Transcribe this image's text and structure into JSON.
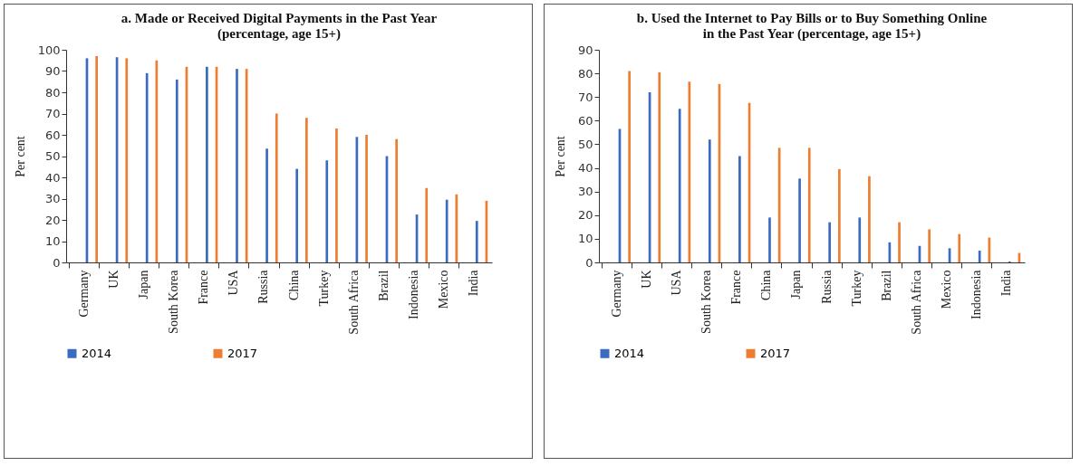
{
  "chart_data": [
    {
      "type": "bar",
      "title": "a. Made or Received Digital Payments in the Past Year\n(percentage, age 15+)",
      "ylabel": "Per cent",
      "categories": [
        "Germany",
        "UK",
        "Japan",
        "South Korea",
        "France",
        "USA",
        "Russia",
        "China",
        "Turkey",
        "South Africa",
        "Brazil",
        "Indonesia",
        "Mexico",
        "India"
      ],
      "series": [
        {
          "name": "2014",
          "color": "#3a6bc0",
          "values": [
            96,
            96.5,
            89,
            86,
            92,
            91,
            53.5,
            44,
            48,
            59,
            50,
            22.5,
            29.5,
            19.5
          ]
        },
        {
          "name": "2017",
          "color": "#ed7d31",
          "values": [
            97,
            96,
            95,
            92,
            92,
            91,
            70,
            68,
            63,
            60,
            58,
            35,
            32,
            29
          ]
        }
      ],
      "ylim": [
        0,
        100
      ],
      "yticks": [
        0,
        10,
        20,
        30,
        40,
        50,
        60,
        70,
        80,
        90,
        100
      ],
      "grid": false,
      "legend": "bottom"
    },
    {
      "type": "bar",
      "title": "b. Used the Internet to Pay Bills or to Buy Something Online\nin the Past Year (percentage, age 15+)",
      "ylabel": "Per cent",
      "categories": [
        "Germany",
        "UK",
        "USA",
        "South Korea",
        "France",
        "China",
        "Japan",
        "Russia",
        "Turkey",
        "Brazil",
        "South Africa",
        "Mexico",
        "Indonesia",
        "India"
      ],
      "series": [
        {
          "name": "2014",
          "color": "#3a6bc0",
          "values": [
            56.5,
            72,
            65,
            52,
            45,
            19,
            35.5,
            17,
            19,
            8.5,
            7,
            6,
            5,
            0.4
          ]
        },
        {
          "name": "2017",
          "color": "#ed7d31",
          "values": [
            81,
            80.5,
            76.5,
            75.5,
            67.5,
            48.5,
            48.5,
            39.5,
            36.5,
            17,
            14,
            12,
            10.5,
            4
          ]
        }
      ],
      "ylim": [
        0,
        90
      ],
      "yticks": [
        0,
        10,
        20,
        30,
        40,
        50,
        60,
        70,
        80,
        90
      ],
      "grid": false,
      "legend": "bottom"
    }
  ]
}
